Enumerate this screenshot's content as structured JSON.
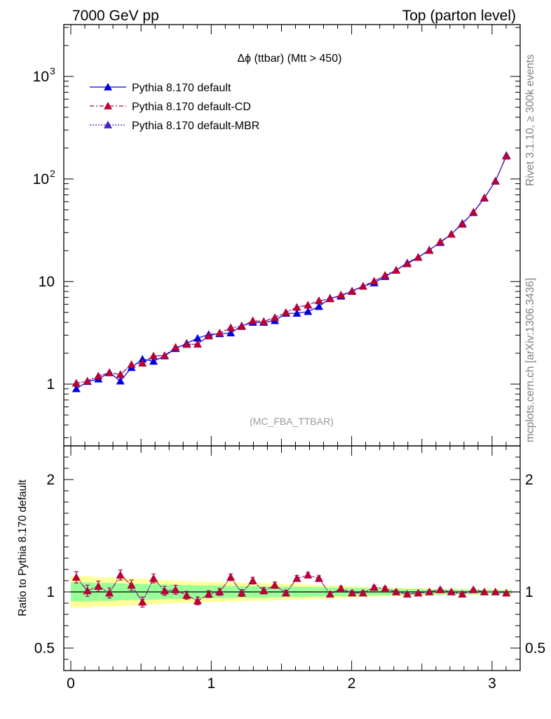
{
  "header": {
    "left": "7000 GeV pp",
    "right": "Top (parton level)"
  },
  "side_labels": {
    "rivet": "Rivet 3.1.10, ≥ 300k events",
    "mcplots": "mcplots.cern.ch [arXiv:1306.3436]"
  },
  "colors": {
    "default": "#0000dd",
    "cd": "#bb0033",
    "mbr": "#4422bb",
    "band_inner": "#99ff99",
    "band_outer": "#ffff99"
  },
  "chart_data": [
    {
      "type": "line",
      "title": "Δϕ (ttbar) (Mtt > 450)",
      "watermark": "(MC_FBA_TTBAR)",
      "xlim": [
        -0.05,
        3.2
      ],
      "ylim": [
        0.25,
        3200
      ],
      "yscale": "log",
      "ytick_labels": [
        "1",
        "10",
        "10",
        "10"
      ],
      "ytick_exponents": [
        "",
        "",
        "2",
        "3"
      ],
      "legend_placement": "top-left",
      "series": [
        {
          "name": "Pythia 8.170 default",
          "x": [
            0.039,
            0.118,
            0.196,
            0.275,
            0.353,
            0.432,
            0.51,
            0.589,
            0.668,
            0.746,
            0.825,
            0.903,
            0.982,
            1.06,
            1.139,
            1.217,
            1.296,
            1.374,
            1.453,
            1.532,
            1.61,
            1.689,
            1.767,
            1.846,
            1.924,
            2.003,
            2.081,
            2.16,
            2.238,
            2.317,
            2.396,
            2.474,
            2.553,
            2.631,
            2.71,
            2.788,
            2.867,
            2.945,
            3.024,
            3.102
          ],
          "y": [
            0.9,
            1.06,
            1.12,
            1.3,
            1.07,
            1.45,
            1.75,
            1.67,
            1.88,
            2.22,
            2.5,
            2.8,
            3.05,
            3.1,
            3.15,
            3.7,
            4.0,
            4.0,
            4.15,
            4.9,
            4.9,
            5.1,
            5.7,
            6.9,
            7.2,
            8.1,
            9.0,
            9.7,
            11.2,
            12.9,
            15.2,
            17.3,
            20.3,
            24.0,
            29.0,
            37.0,
            47.0,
            65.0,
            95.0,
            170.0
          ]
        },
        {
          "name": "Pythia 8.170 default-CD",
          "x": [
            0.039,
            0.118,
            0.196,
            0.275,
            0.353,
            0.432,
            0.51,
            0.589,
            0.668,
            0.746,
            0.825,
            0.903,
            0.982,
            1.06,
            1.139,
            1.217,
            1.296,
            1.374,
            1.453,
            1.532,
            1.61,
            1.689,
            1.767,
            1.846,
            1.924,
            2.003,
            2.081,
            2.16,
            2.238,
            2.317,
            2.396,
            2.474,
            2.553,
            2.631,
            2.71,
            2.788,
            2.867,
            2.945,
            3.024,
            3.102
          ],
          "y": [
            1.02,
            1.07,
            1.2,
            1.29,
            1.24,
            1.55,
            1.6,
            1.88,
            1.9,
            2.28,
            2.44,
            2.45,
            2.95,
            3.15,
            3.55,
            3.65,
            4.15,
            4.08,
            4.45,
            5.0,
            5.6,
            5.9,
            6.5,
            6.8,
            7.4,
            8.0,
            9.0,
            10.1,
            11.5,
            12.9,
            14.9,
            17.2,
            20.1,
            24.4,
            29.0,
            36.2,
            47.5,
            65.5,
            95.5,
            167.0
          ]
        },
        {
          "name": "Pythia 8.170 default-MBR",
          "x": [
            0.039,
            0.118,
            0.196,
            0.275,
            0.353,
            0.432,
            0.51,
            0.589,
            0.668,
            0.746,
            0.825,
            0.903,
            0.982,
            1.06,
            1.139,
            1.217,
            1.296,
            1.374,
            1.453,
            1.532,
            1.61,
            1.689,
            1.767,
            1.846,
            1.924,
            2.003,
            2.081,
            2.16,
            2.238,
            2.317,
            2.396,
            2.474,
            2.553,
            2.631,
            2.71,
            2.788,
            2.867,
            2.945,
            3.024,
            3.102
          ],
          "y": [
            1.02,
            1.07,
            1.2,
            1.29,
            1.24,
            1.55,
            1.6,
            1.88,
            1.9,
            2.28,
            2.44,
            2.45,
            2.95,
            3.15,
            3.55,
            3.65,
            4.15,
            4.08,
            4.45,
            5.0,
            5.6,
            5.9,
            6.5,
            6.8,
            7.4,
            8.0,
            9.0,
            10.1,
            11.5,
            12.9,
            14.9,
            17.2,
            20.1,
            24.4,
            29.0,
            36.2,
            47.5,
            65.5,
            95.5,
            167.0
          ]
        }
      ]
    },
    {
      "type": "line",
      "ylabel": "Ratio to Pythia 8.170 default",
      "xlim": [
        -0.05,
        3.2
      ],
      "ylim": [
        0.3,
        2.3
      ],
      "xticks": [
        0,
        1,
        2,
        3
      ],
      "xtick_labels": [
        "0",
        "1",
        "2",
        "3"
      ],
      "yticks": [
        0.5,
        1,
        2
      ],
      "ytick_labels": [
        "0.5",
        "1",
        "2"
      ],
      "reference": 1,
      "band": {
        "x": [
          0.0,
          0.078,
          0.157,
          0.235,
          0.314,
          0.392,
          0.471,
          0.549,
          0.628,
          0.707,
          0.785,
          0.864,
          0.942,
          1.021,
          1.099,
          1.178,
          1.256,
          1.335,
          1.414,
          1.492,
          1.571,
          1.649,
          1.728,
          1.806,
          1.885,
          1.963,
          2.042,
          2.12,
          2.199,
          2.277,
          2.356,
          2.435,
          2.513,
          2.592,
          2.67,
          2.749,
          2.827,
          2.906,
          2.984,
          3.063,
          3.142
        ],
        "inner": [
          0.085,
          0.085,
          0.08,
          0.08,
          0.075,
          0.072,
          0.07,
          0.068,
          0.065,
          0.063,
          0.06,
          0.058,
          0.056,
          0.055,
          0.053,
          0.052,
          0.051,
          0.05,
          0.048,
          0.047,
          0.046,
          0.044,
          0.042,
          0.04,
          0.038,
          0.036,
          0.034,
          0.032,
          0.03,
          0.028,
          0.027,
          0.026,
          0.024,
          0.023,
          0.022,
          0.02,
          0.02,
          0.018,
          0.017,
          0.016,
          0.016
        ],
        "outer": [
          0.14,
          0.14,
          0.13,
          0.13,
          0.125,
          0.12,
          0.115,
          0.11,
          0.105,
          0.1,
          0.095,
          0.092,
          0.09,
          0.088,
          0.085,
          0.082,
          0.08,
          0.078,
          0.075,
          0.072,
          0.07,
          0.066,
          0.062,
          0.058,
          0.055,
          0.05,
          0.047,
          0.044,
          0.041,
          0.038,
          0.035,
          0.033,
          0.031,
          0.029,
          0.027,
          0.026,
          0.025,
          0.024,
          0.023,
          0.022,
          0.022
        ]
      },
      "series": [
        {
          "name": "Pythia 8.170 default-CD",
          "x": [
            0.039,
            0.118,
            0.196,
            0.275,
            0.353,
            0.432,
            0.51,
            0.589,
            0.668,
            0.746,
            0.825,
            0.903,
            0.982,
            1.06,
            1.139,
            1.217,
            1.296,
            1.374,
            1.453,
            1.532,
            1.61,
            1.689,
            1.767,
            1.846,
            1.924,
            2.003,
            2.081,
            2.16,
            2.238,
            2.317,
            2.396,
            2.474,
            2.553,
            2.631,
            2.71,
            2.788,
            2.867,
            2.945,
            3.024,
            3.102
          ],
          "y": [
            1.13,
            1.01,
            1.05,
            0.99,
            1.15,
            1.06,
            0.91,
            1.12,
            1.01,
            1.02,
            0.97,
            0.92,
            0.98,
            1.0,
            1.13,
            0.99,
            1.1,
            1.01,
            1.06,
            0.99,
            1.12,
            1.15,
            1.12,
            0.98,
            1.03,
            0.99,
            0.99,
            1.04,
            1.03,
            1.0,
            0.98,
            0.99,
            1.0,
            1.02,
            1.0,
            0.98,
            1.02,
            1.0,
            1.0,
            0.99
          ],
          "err": [
            0.05,
            0.05,
            0.045,
            0.045,
            0.045,
            0.045,
            0.045,
            0.04,
            0.04,
            0.04,
            0.035,
            0.035,
            0.03,
            0.03,
            0.03,
            0.03,
            0.03,
            0.028,
            0.028,
            0.026,
            0.025,
            0.025,
            0.024,
            0.022,
            0.02,
            0.02,
            0.018,
            0.017,
            0.016,
            0.015,
            0.014,
            0.013,
            0.012,
            0.012,
            0.011,
            0.01,
            0.01,
            0.009,
            0.009,
            0.008
          ]
        },
        {
          "name": "Pythia 8.170 default-MBR",
          "x": [
            0.039,
            0.118,
            0.196,
            0.275,
            0.353,
            0.432,
            0.51,
            0.589,
            0.668,
            0.746,
            0.825,
            0.903,
            0.982,
            1.06,
            1.139,
            1.217,
            1.296,
            1.374,
            1.453,
            1.532,
            1.61,
            1.689,
            1.767,
            1.846,
            1.924,
            2.003,
            2.081,
            2.16,
            2.238,
            2.317,
            2.396,
            2.474,
            2.553,
            2.631,
            2.71,
            2.788,
            2.867,
            2.945,
            3.024,
            3.102
          ],
          "y": [
            1.13,
            1.01,
            1.05,
            0.99,
            1.15,
            1.06,
            0.91,
            1.12,
            1.01,
            1.02,
            0.97,
            0.92,
            0.98,
            1.0,
            1.13,
            0.99,
            1.1,
            1.01,
            1.06,
            0.99,
            1.12,
            1.15,
            1.12,
            0.98,
            1.03,
            0.99,
            0.99,
            1.04,
            1.03,
            1.0,
            0.98,
            0.99,
            1.0,
            1.02,
            1.0,
            0.98,
            1.02,
            1.0,
            1.0,
            0.99
          ],
          "err": [
            0.05,
            0.05,
            0.045,
            0.045,
            0.045,
            0.045,
            0.045,
            0.04,
            0.04,
            0.04,
            0.035,
            0.035,
            0.03,
            0.03,
            0.03,
            0.03,
            0.03,
            0.028,
            0.028,
            0.026,
            0.025,
            0.025,
            0.024,
            0.022,
            0.02,
            0.02,
            0.018,
            0.017,
            0.016,
            0.015,
            0.014,
            0.013,
            0.012,
            0.012,
            0.011,
            0.01,
            0.01,
            0.009,
            0.009,
            0.008
          ]
        }
      ]
    }
  ]
}
